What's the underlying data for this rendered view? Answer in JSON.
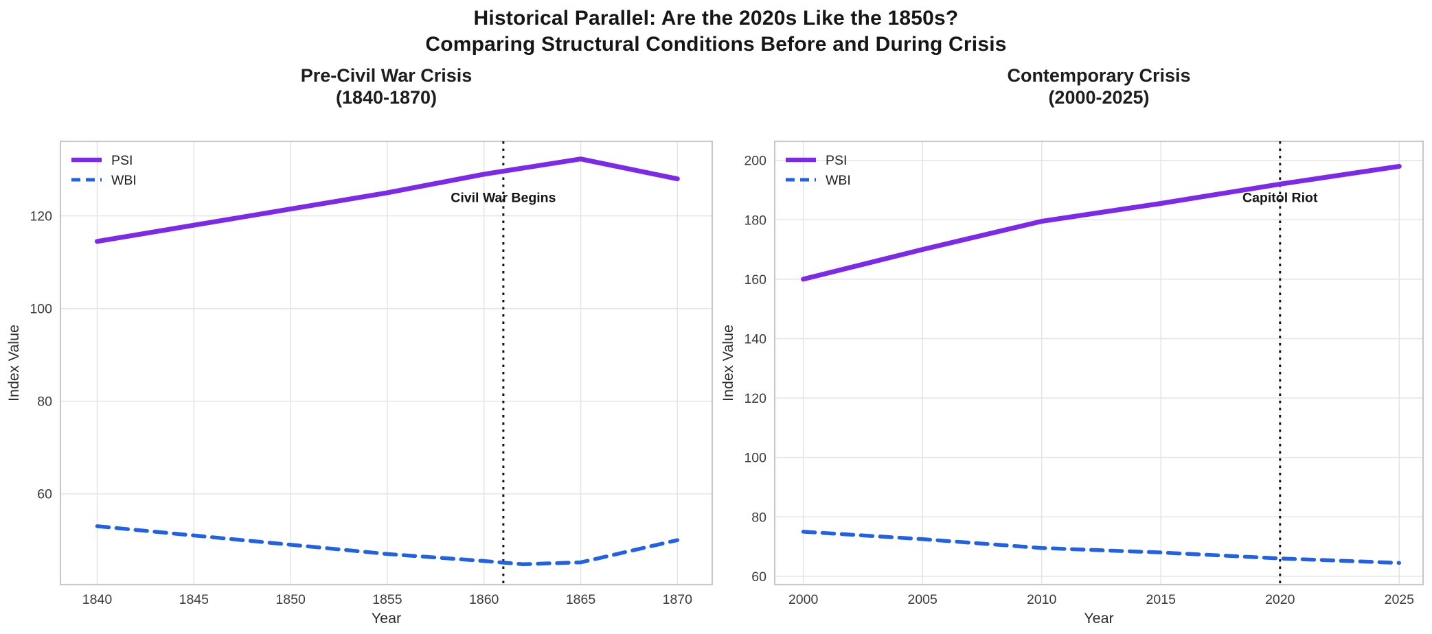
{
  "figure": {
    "title_line1": "Historical Parallel: Are the 2020s Like the 1850s?",
    "title_line2": "Comparing Structural Conditions Before and During Crisis"
  },
  "colors": {
    "psi": "#7C2AE8",
    "wbi": "#2161E5",
    "event_line": "#111111",
    "grid": "#E4E4E4",
    "spine": "#C9C9C9",
    "tick_text": "#3a3a3a",
    "title_text": "#161616"
  },
  "chart_data": [
    {
      "type": "line",
      "title_line1": "Pre-Civil War Crisis",
      "title_line2": "(1840-1870)",
      "xlabel": "Year",
      "ylabel": "Index Value",
      "xlim": [
        1838.1,
        1871.8
      ],
      "ylim": [
        40.4,
        136.1
      ],
      "xticks": [
        1840,
        1845,
        1850,
        1855,
        1860,
        1865,
        1870
      ],
      "yticks": [
        60,
        80,
        100,
        120
      ],
      "grid": true,
      "legend": {
        "position": "upper left",
        "entries": [
          "PSI",
          "WBI"
        ]
      },
      "series": [
        {
          "name": "PSI",
          "color": "#7C2AE8",
          "dash": "solid",
          "width": 7,
          "x": [
            1840,
            1845,
            1850,
            1855,
            1860,
            1865,
            1870
          ],
          "y": [
            114.5,
            118,
            121.5,
            125,
            129,
            132.3,
            128
          ]
        },
        {
          "name": "WBI",
          "color": "#2161E5",
          "dash": "dashed",
          "width": 5.5,
          "x": [
            1840,
            1845,
            1850,
            1855,
            1860,
            1862,
            1865,
            1870
          ],
          "y": [
            53,
            51,
            49,
            47,
            45.5,
            44.8,
            45.2,
            50
          ]
        }
      ],
      "event_line": {
        "x": 1861,
        "label": "Civil War Begins",
        "label_y": 123
      }
    },
    {
      "type": "line",
      "title_line1": "Contemporary Crisis",
      "title_line2": "(2000-2025)",
      "xlabel": "Year",
      "ylabel": "Index Value",
      "xlim": [
        1998.8,
        2026.0
      ],
      "ylim": [
        57.2,
        206.4
      ],
      "xticks": [
        2000,
        2005,
        2010,
        2015,
        2020,
        2025
      ],
      "yticks": [
        60,
        80,
        100,
        120,
        140,
        160,
        180,
        200
      ],
      "grid": true,
      "legend": {
        "position": "upper left",
        "entries": [
          "PSI",
          "WBI"
        ]
      },
      "series": [
        {
          "name": "PSI",
          "color": "#7C2AE8",
          "dash": "solid",
          "width": 7,
          "x": [
            2000,
            2005,
            2010,
            2015,
            2020,
            2025
          ],
          "y": [
            160,
            170,
            179.5,
            185.5,
            192,
            198
          ]
        },
        {
          "name": "WBI",
          "color": "#2161E5",
          "dash": "dashed",
          "width": 5.5,
          "x": [
            2000,
            2005,
            2010,
            2015,
            2020,
            2025
          ],
          "y": [
            75,
            72.5,
            69.5,
            68,
            66,
            64.5
          ]
        }
      ],
      "event_line": {
        "x": 2020,
        "label": "Capitol Riot",
        "label_y": 186
      }
    }
  ]
}
